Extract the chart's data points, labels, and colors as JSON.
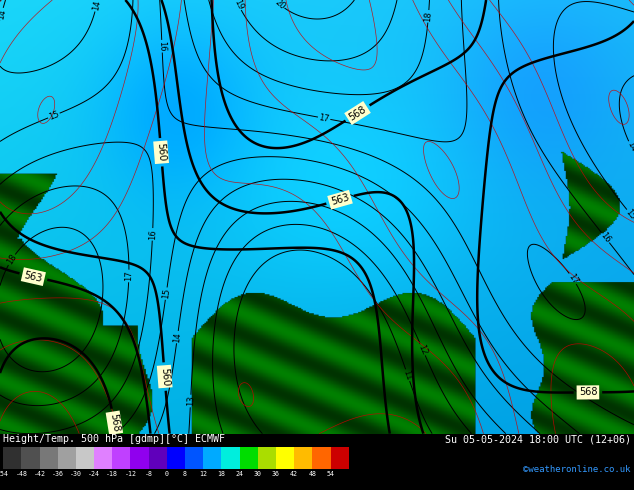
{
  "title_left": "Height/Temp. 500 hPa [gdmp][°C] ECMWF",
  "title_right": "Su 05-05-2024 18:00 UTC (12+06)",
  "credit": "©weatheronline.co.uk",
  "colorbar_values": [
    -54,
    -48,
    -42,
    -36,
    -30,
    -24,
    -18,
    -12,
    -8,
    0,
    8,
    12,
    18,
    24,
    30,
    36,
    42,
    48,
    54
  ],
  "colorbar_colors": [
    "#303030",
    "#505050",
    "#787878",
    "#a0a0a0",
    "#c8c8c8",
    "#e080ff",
    "#c040ff",
    "#9000ee",
    "#6000bb",
    "#0000ff",
    "#0055ff",
    "#00aaff",
    "#00eedd",
    "#00dd00",
    "#aadd00",
    "#ffff00",
    "#ffbb00",
    "#ff6600",
    "#cc0000"
  ],
  "ocean_color_top": "#00d4ff",
  "ocean_color_mid": "#00b8e6",
  "ocean_color_deep": "#0099cc",
  "ocean_dark_spot": "#0077aa",
  "land_color": "#006400",
  "land_mid": "#008000",
  "land_light": "#00a000",
  "contour_color": "#000000",
  "contour_lw": 0.7,
  "highlight_lw": 1.8,
  "highlight_levels": [
    560,
    563,
    568,
    576
  ],
  "highlight_label_bg": "#ffffcc",
  "slp_color": "#cc0000",
  "slp_lw": 0.5,
  "label_fontsize": 6.0,
  "label_color": "#000000",
  "fig_bg": "#000000",
  "bar_bg": "#000000",
  "bar_text": "#ffffff",
  "credit_color": "#3399ff",
  "figsize": [
    6.34,
    4.9
  ],
  "dpi": 100
}
